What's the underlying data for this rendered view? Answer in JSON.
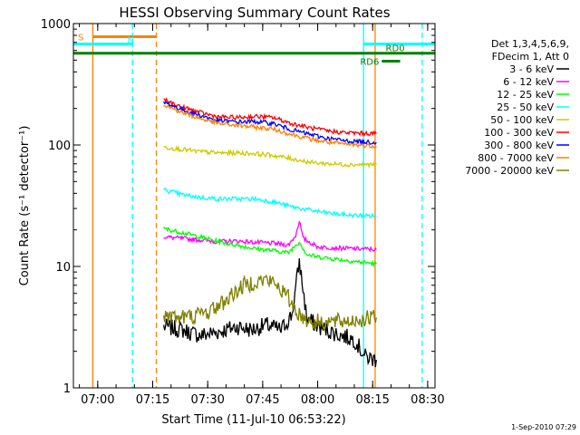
{
  "chart_data": {
    "type": "line",
    "title": "HESSI Observing Summary Count Rates",
    "xlabel": "Start Time (11-Jul-10 06:53:22)",
    "ylabel": "Count Rate (s⁻¹ detector⁻¹)",
    "y_scale": "log",
    "ylim": [
      1,
      1000
    ],
    "xlim": [
      "06:53:22",
      "08:32:00"
    ],
    "y_ticks": [
      "1",
      "10",
      "100",
      "1000"
    ],
    "x_ticks": [
      "07:00",
      "07:15",
      "07:30",
      "07:45",
      "08:00",
      "08:15",
      "08:30"
    ],
    "legend_position": "right",
    "legend_header": [
      "Det 1,3,4,5,6,9,",
      "FDecim 1, Att 0"
    ],
    "footer_date": "1-Sep-2010 07:29",
    "series": [
      {
        "name": "3 - 6 keV",
        "color": "#000000",
        "points": [
          [
            "07:18",
            3.2
          ],
          [
            "07:23",
            3.0
          ],
          [
            "07:28",
            2.7
          ],
          [
            "07:33",
            2.9
          ],
          [
            "07:38",
            3.2
          ],
          [
            "07:42",
            3.0
          ],
          [
            "07:46",
            3.3
          ],
          [
            "07:50",
            3.0
          ],
          [
            "07:53",
            4.0
          ],
          [
            "07:55",
            11.0
          ],
          [
            "07:57",
            3.8
          ],
          [
            "08:00",
            3.2
          ],
          [
            "08:05",
            2.8
          ],
          [
            "08:10",
            2.5
          ],
          [
            "08:13",
            1.8
          ],
          [
            "08:16",
            1.7
          ]
        ]
      },
      {
        "name": "6 - 12 keV",
        "color": "#ff00ff",
        "points": [
          [
            "07:18",
            17.5
          ],
          [
            "07:23",
            17.0
          ],
          [
            "07:28",
            16.5
          ],
          [
            "07:33",
            16.0
          ],
          [
            "07:38",
            16.2
          ],
          [
            "07:43",
            15.8
          ],
          [
            "07:48",
            15.5
          ],
          [
            "07:52",
            15.0
          ],
          [
            "07:54",
            18.0
          ],
          [
            "07:55",
            24.0
          ],
          [
            "07:56",
            17.0
          ],
          [
            "08:00",
            14.5
          ],
          [
            "08:05",
            14.2
          ],
          [
            "08:10",
            14.0
          ],
          [
            "08:16",
            13.8
          ]
        ]
      },
      {
        "name": "12 - 25 keV",
        "color": "#00ff00",
        "points": [
          [
            "07:18",
            20.5
          ],
          [
            "07:23",
            19.0
          ],
          [
            "07:28",
            17.5
          ],
          [
            "07:33",
            16.0
          ],
          [
            "07:38",
            15.0
          ],
          [
            "07:43",
            14.0
          ],
          [
            "07:48",
            13.5
          ],
          [
            "07:52",
            13.0
          ],
          [
            "07:55",
            16.0
          ],
          [
            "07:57",
            12.5
          ],
          [
            "08:00",
            12.0
          ],
          [
            "08:05",
            11.5
          ],
          [
            "08:10",
            11.0
          ],
          [
            "08:16",
            10.5
          ]
        ]
      },
      {
        "name": "25 - 50 keV",
        "color": "#00ffff",
        "points": [
          [
            "07:18",
            43.0
          ],
          [
            "07:23",
            39.0
          ],
          [
            "07:28",
            37.0
          ],
          [
            "07:33",
            36.0
          ],
          [
            "07:38",
            36.0
          ],
          [
            "07:43",
            36.0
          ],
          [
            "07:48",
            34.0
          ],
          [
            "07:53",
            31.0
          ],
          [
            "07:58",
            29.0
          ],
          [
            "08:03",
            27.5
          ],
          [
            "08:08",
            26.5
          ],
          [
            "08:16",
            26.0
          ]
        ]
      },
      {
        "name": "50 - 100 keV",
        "color": "#cccc00",
        "points": [
          [
            "07:18",
            96.0
          ],
          [
            "07:23",
            92.0
          ],
          [
            "07:28",
            88.0
          ],
          [
            "07:33",
            86.0
          ],
          [
            "07:38",
            86.0
          ],
          [
            "07:43",
            85.0
          ],
          [
            "07:48",
            82.0
          ],
          [
            "07:53",
            77.0
          ],
          [
            "07:58",
            72.0
          ],
          [
            "08:03",
            70.0
          ],
          [
            "08:08",
            69.0
          ],
          [
            "08:16",
            69.0
          ]
        ]
      },
      {
        "name": "100 - 300 keV",
        "color": "#ff0000",
        "points": [
          [
            "07:18",
            235.0
          ],
          [
            "07:23",
            205.0
          ],
          [
            "07:28",
            185.0
          ],
          [
            "07:33",
            170.0
          ],
          [
            "07:38",
            168.0
          ],
          [
            "07:43",
            172.0
          ],
          [
            "07:48",
            168.0
          ],
          [
            "07:53",
            150.0
          ],
          [
            "07:58",
            138.0
          ],
          [
            "08:03",
            130.0
          ],
          [
            "08:08",
            126.0
          ],
          [
            "08:16",
            124.0
          ]
        ]
      },
      {
        "name": "300 - 800 keV",
        "color": "#0000ff",
        "points": [
          [
            "07:18",
            225.0
          ],
          [
            "07:23",
            195.0
          ],
          [
            "07:28",
            175.0
          ],
          [
            "07:33",
            158.0
          ],
          [
            "07:38",
            155.0
          ],
          [
            "07:43",
            156.0
          ],
          [
            "07:48",
            150.0
          ],
          [
            "07:53",
            133.0
          ],
          [
            "07:58",
            122.0
          ],
          [
            "08:03",
            113.0
          ],
          [
            "08:08",
            108.0
          ],
          [
            "08:16",
            105.0
          ]
        ]
      },
      {
        "name": "800 - 7000 keV",
        "color": "#ff8000",
        "points": [
          [
            "07:18",
            215.0
          ],
          [
            "07:23",
            185.0
          ],
          [
            "07:28",
            165.0
          ],
          [
            "07:33",
            150.0
          ],
          [
            "07:38",
            145.0
          ],
          [
            "07:43",
            140.0
          ],
          [
            "07:48",
            135.0
          ],
          [
            "07:53",
            122.0
          ],
          [
            "07:58",
            112.0
          ],
          [
            "08:03",
            105.0
          ],
          [
            "08:08",
            101.0
          ],
          [
            "08:16",
            98.0
          ]
        ]
      },
      {
        "name": "7000 - 20000 keV",
        "color": "#808000",
        "points": [
          [
            "07:18",
            4.0
          ],
          [
            "07:22",
            3.8
          ],
          [
            "07:26",
            3.9
          ],
          [
            "07:30",
            4.2
          ],
          [
            "07:34",
            5.0
          ],
          [
            "07:37",
            6.0
          ],
          [
            "07:40",
            7.0
          ],
          [
            "07:43",
            7.5
          ],
          [
            "07:46",
            7.8
          ],
          [
            "07:49",
            7.0
          ],
          [
            "07:52",
            5.5
          ],
          [
            "07:55",
            4.0
          ],
          [
            "07:58",
            3.5
          ],
          [
            "08:02",
            3.5
          ],
          [
            "08:06",
            3.5
          ],
          [
            "08:10",
            3.6
          ],
          [
            "08:16",
            3.8
          ]
        ]
      }
    ],
    "annotations": {
      "vlines": [
        {
          "time": "06:58:40",
          "color": "#ff8000",
          "style": "solid",
          "label": "S"
        },
        {
          "time": "07:09:30",
          "color": "#00ffff",
          "style": "dashed",
          "label": "N"
        },
        {
          "time": "07:16:00",
          "color": "#ff8000",
          "style": "dashed",
          "label": ""
        },
        {
          "time": "08:12:30",
          "color": "#00ffff",
          "style": "solid",
          "label": ""
        },
        {
          "time": "08:15:40",
          "color": "#ff8000",
          "style": "solid",
          "label": ""
        },
        {
          "time": "08:28:30",
          "color": "#00ffff",
          "style": "dashed",
          "label": ""
        }
      ],
      "hbars": [
        {
          "label": "S",
          "color": "#ff8000",
          "from": "06:58:40",
          "to": "07:16:00",
          "level": 780
        },
        {
          "label": "N",
          "color": "#00ffff",
          "from": "06:53:22",
          "to": "07:09:30",
          "level": 680
        },
        {
          "label": "",
          "color": "#00ffff",
          "from": "08:12:30",
          "to": "08:32:00",
          "level": 680
        },
        {
          "label": "",
          "color": "#008000",
          "from": "06:53:22",
          "to": "08:32:00",
          "level": 570
        },
        {
          "label": "RD6",
          "color": "#008000",
          "from": "08:17:30",
          "to": "08:22:30",
          "level": 490
        },
        {
          "label": "RD0",
          "color": "#008000",
          "from": "",
          "to": "",
          "level": 0
        }
      ]
    }
  }
}
